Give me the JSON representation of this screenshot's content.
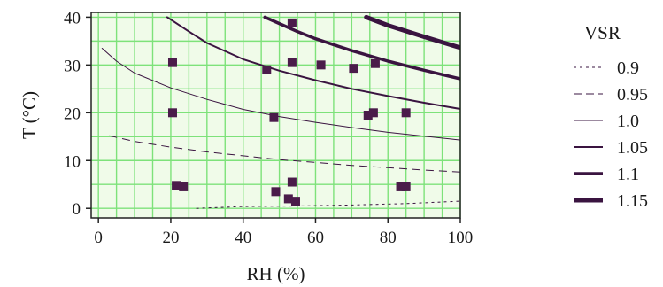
{
  "chart_data": {
    "type": "line",
    "xlabel": "RH (%)",
    "ylabel": "T (°C)",
    "xlim": [
      -2,
      100
    ],
    "ylim": [
      -2,
      41
    ],
    "x_ticks": [
      0,
      20,
      40,
      60,
      80,
      100
    ],
    "y_ticks": [
      0,
      10,
      20,
      30,
      40
    ],
    "grid": true,
    "grid_step_x": 5,
    "grid_step_y": 5,
    "legend_title": "VSR",
    "legend_position": "right",
    "colors": {
      "background": "#ffffff",
      "plot_background": "#f0fbe9",
      "grid": "#7ee27a",
      "curve": "#3a1440",
      "marker": "#4a1c4a",
      "axis": "#222222"
    },
    "series": [
      {
        "name": "0.9",
        "style": "dotted",
        "width": 1,
        "points": [
          [
            27,
            0
          ],
          [
            40,
            0.4
          ],
          [
            55,
            0.5
          ],
          [
            70,
            0.7
          ],
          [
            85,
            1.0
          ],
          [
            100,
            1.5
          ]
        ]
      },
      {
        "name": "0.95",
        "style": "dashed",
        "width": 1,
        "points": [
          [
            3,
            15.2
          ],
          [
            10,
            14.0
          ],
          [
            20,
            12.8
          ],
          [
            30,
            11.8
          ],
          [
            40,
            11.0
          ],
          [
            50,
            10.2
          ],
          [
            60,
            9.6
          ],
          [
            70,
            9.0
          ],
          [
            80,
            8.5
          ],
          [
            90,
            8.0
          ],
          [
            100,
            7.6
          ]
        ]
      },
      {
        "name": "1.0",
        "style": "solid",
        "width": 1,
        "points": [
          [
            1,
            33.5
          ],
          [
            5,
            30.8
          ],
          [
            10,
            28.3
          ],
          [
            20,
            25.2
          ],
          [
            30,
            22.8
          ],
          [
            40,
            20.7
          ],
          [
            50,
            19.2
          ],
          [
            60,
            18.0
          ],
          [
            70,
            16.9
          ],
          [
            80,
            15.9
          ],
          [
            90,
            15.1
          ],
          [
            100,
            14.3
          ]
        ]
      },
      {
        "name": "1.05",
        "style": "solid",
        "width": 2,
        "points": [
          [
            19,
            40
          ],
          [
            25,
            37.0
          ],
          [
            30,
            34.6
          ],
          [
            40,
            31.2
          ],
          [
            50,
            28.8
          ],
          [
            60,
            26.8
          ],
          [
            70,
            25.0
          ],
          [
            80,
            23.5
          ],
          [
            90,
            22.1
          ],
          [
            100,
            20.8
          ]
        ]
      },
      {
        "name": "1.1",
        "style": "solid",
        "width": 3.5,
        "points": [
          [
            46,
            40
          ],
          [
            55,
            37.0
          ],
          [
            60,
            35.5
          ],
          [
            70,
            33.0
          ],
          [
            80,
            30.8
          ],
          [
            90,
            28.9
          ],
          [
            100,
            27.1
          ]
        ]
      },
      {
        "name": "1.15",
        "style": "solid",
        "width": 5,
        "points": [
          [
            74,
            40
          ],
          [
            80,
            38.3
          ],
          [
            90,
            35.9
          ],
          [
            100,
            33.6
          ]
        ]
      }
    ],
    "markers": [
      [
        20.5,
        30.5
      ],
      [
        20.5,
        20
      ],
      [
        21.5,
        4.8
      ],
      [
        23.5,
        4.5
      ],
      [
        46.5,
        29
      ],
      [
        48.5,
        19
      ],
      [
        49,
        3.5
      ],
      [
        52.5,
        2.0
      ],
      [
        53.5,
        5.5
      ],
      [
        54.5,
        1.5
      ],
      [
        53.5,
        38.8
      ],
      [
        53.5,
        30.5
      ],
      [
        61.5,
        30
      ],
      [
        70.5,
        29.3
      ],
      [
        76.5,
        30.3
      ],
      [
        74.5,
        19.5
      ],
      [
        76,
        20
      ],
      [
        83.5,
        4.5
      ],
      [
        85,
        4.5
      ],
      [
        85,
        20
      ]
    ]
  }
}
